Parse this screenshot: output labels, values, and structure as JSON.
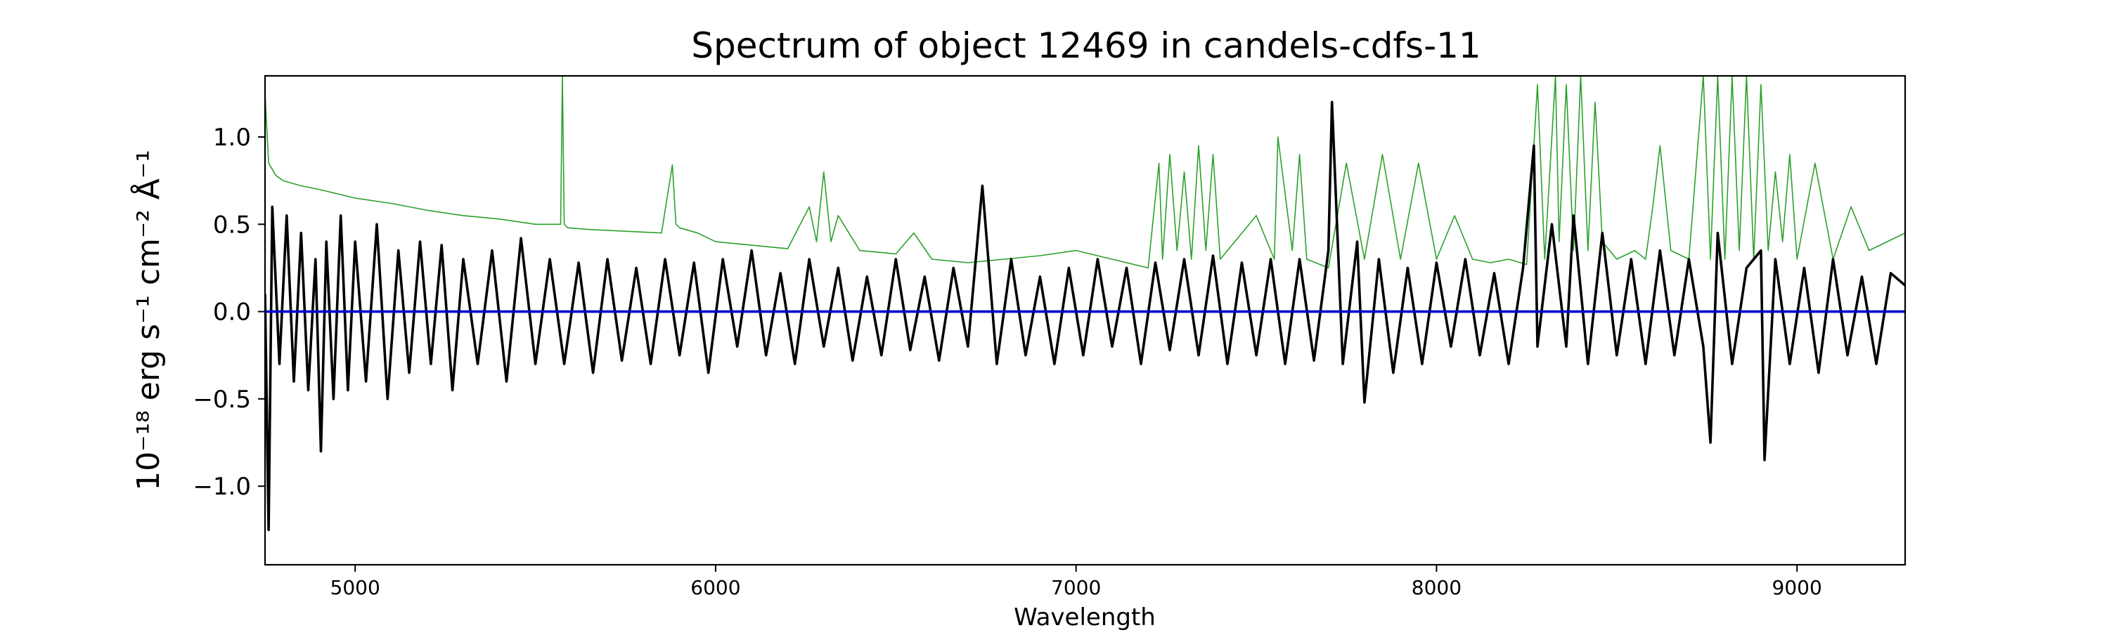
{
  "chart_data": {
    "type": "line",
    "title": "Spectrum of object 12469 in candels-cdfs-11",
    "xlabel": "Wavelength",
    "ylabel": "10⁻¹⁸ erg s⁻¹ cm⁻² Å⁻¹",
    "xlim": [
      4750,
      9300
    ],
    "ylim": [
      -1.45,
      1.35
    ],
    "xticks": [
      5000,
      6000,
      7000,
      8000,
      9000
    ],
    "xtick_labels": [
      "5000",
      "6000",
      "7000",
      "8000",
      "9000"
    ],
    "yticks": [
      -1.0,
      -0.5,
      0.0,
      0.5,
      1.0
    ],
    "ytick_labels": [
      "−1.0",
      "−0.5",
      "0.0",
      "0.5",
      "1.0"
    ],
    "grid": false,
    "legend": false,
    "series": [
      {
        "role": "flux",
        "color": "#000000",
        "x": [
          4750,
          4760,
          4770,
          4790,
          4810,
          4830,
          4850,
          4870,
          4890,
          4905,
          4920,
          4940,
          4960,
          4980,
          5000,
          5030,
          5060,
          5090,
          5120,
          5150,
          5180,
          5210,
          5240,
          5270,
          5300,
          5340,
          5380,
          5420,
          5460,
          5500,
          5540,
          5580,
          5620,
          5660,
          5700,
          5740,
          5780,
          5820,
          5860,
          5900,
          5940,
          5980,
          6020,
          6060,
          6100,
          6140,
          6180,
          6220,
          6260,
          6300,
          6340,
          6380,
          6420,
          6460,
          6500,
          6540,
          6580,
          6620,
          6660,
          6700,
          6740,
          6780,
          6820,
          6860,
          6900,
          6940,
          6980,
          7020,
          7060,
          7100,
          7140,
          7180,
          7220,
          7260,
          7300,
          7340,
          7380,
          7420,
          7460,
          7500,
          7540,
          7580,
          7620,
          7660,
          7700,
          7710,
          7740,
          7780,
          7800,
          7840,
          7880,
          7920,
          7960,
          8000,
          8040,
          8080,
          8120,
          8160,
          8200,
          8240,
          8270,
          8280,
          8320,
          8360,
          8380,
          8420,
          8460,
          8500,
          8540,
          8580,
          8620,
          8660,
          8700,
          8740,
          8760,
          8780,
          8820,
          8860,
          8900,
          8910,
          8940,
          8980,
          9020,
          9060,
          9100,
          9140,
          9180,
          9220,
          9260,
          9300
        ],
        "y": [
          0.1,
          -1.25,
          0.6,
          -0.3,
          0.55,
          -0.4,
          0.45,
          -0.45,
          0.3,
          -0.8,
          0.4,
          -0.5,
          0.55,
          -0.45,
          0.4,
          -0.4,
          0.5,
          -0.5,
          0.35,
          -0.35,
          0.4,
          -0.3,
          0.38,
          -0.45,
          0.3,
          -0.3,
          0.35,
          -0.4,
          0.42,
          -0.3,
          0.3,
          -0.3,
          0.28,
          -0.35,
          0.3,
          -0.28,
          0.25,
          -0.3,
          0.3,
          -0.25,
          0.28,
          -0.35,
          0.3,
          -0.2,
          0.35,
          -0.25,
          0.22,
          -0.3,
          0.3,
          -0.2,
          0.25,
          -0.28,
          0.2,
          -0.25,
          0.3,
          -0.22,
          0.2,
          -0.28,
          0.25,
          -0.2,
          0.72,
          -0.3,
          0.3,
          -0.25,
          0.2,
          -0.3,
          0.25,
          -0.25,
          0.3,
          -0.2,
          0.25,
          -0.3,
          0.28,
          -0.22,
          0.3,
          -0.25,
          0.32,
          -0.3,
          0.28,
          -0.25,
          0.3,
          -0.3,
          0.3,
          -0.28,
          0.35,
          1.2,
          -0.3,
          0.4,
          -0.52,
          0.3,
          -0.35,
          0.25,
          -0.3,
          0.28,
          -0.2,
          0.3,
          -0.25,
          0.22,
          -0.3,
          0.25,
          0.95,
          -0.2,
          0.5,
          -0.2,
          0.55,
          -0.3,
          0.45,
          -0.25,
          0.3,
          -0.3,
          0.35,
          -0.25,
          0.3,
          -0.2,
          -0.75,
          0.45,
          -0.3,
          0.25,
          0.35,
          -0.85,
          0.3,
          -0.3,
          0.25,
          -0.35,
          0.3,
          -0.25,
          0.2,
          -0.3,
          0.22,
          0.15
        ]
      },
      {
        "role": "error",
        "color": "#2ca02c",
        "x": [
          4750,
          4760,
          4780,
          4800,
          4850,
          4900,
          5000,
          5100,
          5200,
          5300,
          5400,
          5500,
          5550,
          5570,
          5575,
          5580,
          5590,
          5650,
          5750,
          5850,
          5880,
          5890,
          5900,
          5950,
          6000,
          6100,
          6200,
          6260,
          6280,
          6300,
          6320,
          6340,
          6400,
          6450,
          6500,
          6550,
          6600,
          6700,
          6800,
          6900,
          7000,
          7100,
          7200,
          7230,
          7240,
          7260,
          7280,
          7300,
          7320,
          7340,
          7360,
          7380,
          7400,
          7500,
          7550,
          7560,
          7600,
          7620,
          7640,
          7700,
          7750,
          7800,
          7850,
          7900,
          7950,
          8000,
          8050,
          8100,
          8150,
          8200,
          8250,
          8270,
          8280,
          8300,
          8330,
          8340,
          8360,
          8380,
          8400,
          8420,
          8440,
          8460,
          8500,
          8550,
          8580,
          8600,
          8620,
          8650,
          8700,
          8740,
          8760,
          8780,
          8800,
          8820,
          8840,
          8860,
          8880,
          8900,
          8920,
          8940,
          8960,
          8980,
          9000,
          9050,
          9100,
          9150,
          9200,
          9250,
          9300
        ],
        "y": [
          1.25,
          0.85,
          0.78,
          0.75,
          0.72,
          0.7,
          0.65,
          0.62,
          0.58,
          0.55,
          0.53,
          0.5,
          0.5,
          0.5,
          1.35,
          0.5,
          0.48,
          0.47,
          0.46,
          0.45,
          0.84,
          0.5,
          0.48,
          0.45,
          0.4,
          0.38,
          0.36,
          0.6,
          0.4,
          0.8,
          0.4,
          0.55,
          0.35,
          0.34,
          0.33,
          0.45,
          0.3,
          0.28,
          0.3,
          0.32,
          0.35,
          0.3,
          0.25,
          0.85,
          0.3,
          0.9,
          0.35,
          0.8,
          0.3,
          0.95,
          0.35,
          0.9,
          0.3,
          0.55,
          0.3,
          1.0,
          0.35,
          0.9,
          0.3,
          0.25,
          0.85,
          0.3,
          0.9,
          0.3,
          0.85,
          0.3,
          0.55,
          0.3,
          0.28,
          0.3,
          0.27,
          0.95,
          1.3,
          0.3,
          1.35,
          0.4,
          1.3,
          0.35,
          1.35,
          0.35,
          1.2,
          0.4,
          0.3,
          0.35,
          0.3,
          0.6,
          0.95,
          0.35,
          0.3,
          1.35,
          0.3,
          1.35,
          0.3,
          1.35,
          0.35,
          1.35,
          0.3,
          1.3,
          0.35,
          0.8,
          0.4,
          0.9,
          0.3,
          0.85,
          0.3,
          0.6,
          0.35,
          0.4,
          0.45
        ]
      },
      {
        "role": "model",
        "color": "#0000cc",
        "x": [
          4750,
          9300
        ],
        "y": [
          0.0,
          0.0
        ]
      }
    ]
  }
}
